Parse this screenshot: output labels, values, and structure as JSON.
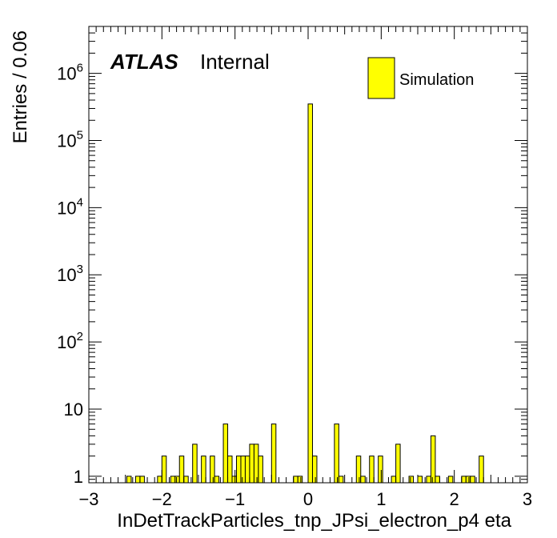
{
  "chart_data": {
    "type": "bar",
    "xlabel": "InDetTrackParticles_tnp_JPsi_electron_p4 eta",
    "ylabel": "Entries / 0.06",
    "xlim": [
      -3,
      3
    ],
    "ylim": [
      0.8,
      5000000
    ],
    "yscale": "log",
    "bin_width": 0.06,
    "xticks": [
      -3,
      -2,
      -1,
      0,
      1,
      2,
      3
    ],
    "yticks": [
      {
        "value": 1,
        "label": "1",
        "exp": ""
      },
      {
        "value": 10,
        "label": "10",
        "exp": ""
      },
      {
        "value": 100,
        "label": "10",
        "exp": "2"
      },
      {
        "value": 1000,
        "label": "10",
        "exp": "3"
      },
      {
        "value": 10000,
        "label": "10",
        "exp": "4"
      },
      {
        "value": 100000,
        "label": "10",
        "exp": "5"
      },
      {
        "value": 1000000,
        "label": "10",
        "exp": "6"
      }
    ],
    "fill_color": "#ffff00",
    "series": [
      {
        "name": "Simulation",
        "bins": [
          {
            "x0": -2.48,
            "value": 1
          },
          {
            "x0": -2.36,
            "value": 1
          },
          {
            "x0": -2.3,
            "value": 1
          },
          {
            "x0": -2.06,
            "value": 1
          },
          {
            "x0": -2.0,
            "value": 2
          },
          {
            "x0": -1.88,
            "value": 1
          },
          {
            "x0": -1.82,
            "value": 1
          },
          {
            "x0": -1.76,
            "value": 2
          },
          {
            "x0": -1.7,
            "value": 1
          },
          {
            "x0": -1.58,
            "value": 3
          },
          {
            "x0": -1.46,
            "value": 2
          },
          {
            "x0": -1.34,
            "value": 2
          },
          {
            "x0": -1.28,
            "value": 1
          },
          {
            "x0": -1.16,
            "value": 6
          },
          {
            "x0": -1.1,
            "value": 2
          },
          {
            "x0": -1.04,
            "value": 1
          },
          {
            "x0": -0.98,
            "value": 2
          },
          {
            "x0": -0.92,
            "value": 2
          },
          {
            "x0": -0.86,
            "value": 2
          },
          {
            "x0": -0.8,
            "value": 3
          },
          {
            "x0": -0.74,
            "value": 3
          },
          {
            "x0": -0.68,
            "value": 2
          },
          {
            "x0": -0.5,
            "value": 6
          },
          {
            "x0": -0.2,
            "value": 1
          },
          {
            "x0": -0.14,
            "value": 1
          },
          {
            "x0": 0.0,
            "value": 350000
          },
          {
            "x0": 0.06,
            "value": 2
          },
          {
            "x0": 0.36,
            "value": 6
          },
          {
            "x0": 0.42,
            "value": 1
          },
          {
            "x0": 0.66,
            "value": 2
          },
          {
            "x0": 0.72,
            "value": 1
          },
          {
            "x0": 0.84,
            "value": 2
          },
          {
            "x0": 0.96,
            "value": 2
          },
          {
            "x0": 1.14,
            "value": 1
          },
          {
            "x0": 1.2,
            "value": 3
          },
          {
            "x0": 1.38,
            "value": 1
          },
          {
            "x0": 1.5,
            "value": 1
          },
          {
            "x0": 1.62,
            "value": 1
          },
          {
            "x0": 1.68,
            "value": 4
          },
          {
            "x0": 1.74,
            "value": 1
          },
          {
            "x0": 1.92,
            "value": 1
          },
          {
            "x0": 2.1,
            "value": 1
          },
          {
            "x0": 2.16,
            "value": 1
          },
          {
            "x0": 2.22,
            "value": 1
          },
          {
            "x0": 2.34,
            "value": 2
          }
        ]
      }
    ]
  },
  "atlas_label": {
    "brand": "ATLAS",
    "status": "Internal"
  }
}
